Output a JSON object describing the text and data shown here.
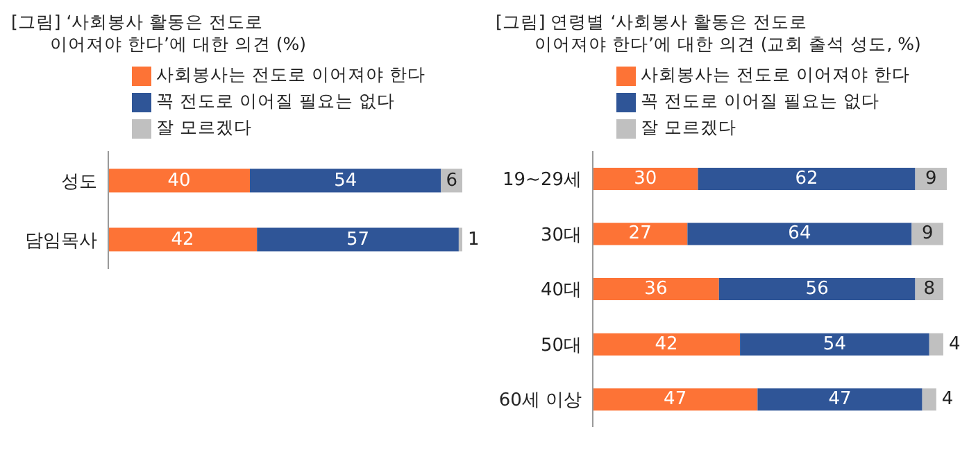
{
  "chart_data": [
    {
      "type": "bar",
      "orientation": "horizontal",
      "stacked": true,
      "title": "[그림] ‘사회봉사 활동은 전도로\n이어져야 한다’에 대한 의견 (%)",
      "categories": [
        "성도",
        "담임목사"
      ],
      "series": [
        {
          "name": "사회봉사는 전도로 이어져야 한다",
          "color": "#fd7336",
          "values": [
            40,
            42
          ]
        },
        {
          "name": "꼭 전도로 이어질 필요는 없다",
          "color": "#2f5597",
          "values": [
            54,
            57
          ]
        },
        {
          "name": "잘 모르겠다",
          "color": "#c0c0c0",
          "values": [
            6,
            1
          ]
        }
      ],
      "xlim": [
        0,
        100
      ],
      "tick_labels": "y",
      "data_labels": true,
      "legend": "top",
      "grid": false
    },
    {
      "type": "bar",
      "orientation": "horizontal",
      "stacked": true,
      "title": "[그림] 연령별 ‘사회봉사 활동은 전도로\n이어져야 한다’에 대한 의견 (교회 출석 성도, %)",
      "categories": [
        "19~29세",
        "30대",
        "40대",
        "50대",
        "60세 이상"
      ],
      "series": [
        {
          "name": "사회봉사는 전도로 이어져야 한다",
          "color": "#fd7336",
          "values": [
            30,
            27,
            36,
            42,
            47
          ]
        },
        {
          "name": "꼭 전도로 이어질 필요는 없다",
          "color": "#2f5597",
          "values": [
            62,
            64,
            56,
            54,
            47
          ]
        },
        {
          "name": "잘 모르겠다",
          "color": "#c0c0c0",
          "values": [
            9,
            9,
            8,
            4,
            4
          ]
        }
      ],
      "xlim": [
        0,
        101
      ],
      "tick_labels": "y",
      "data_labels": true,
      "legend": "top",
      "grid": false
    }
  ]
}
